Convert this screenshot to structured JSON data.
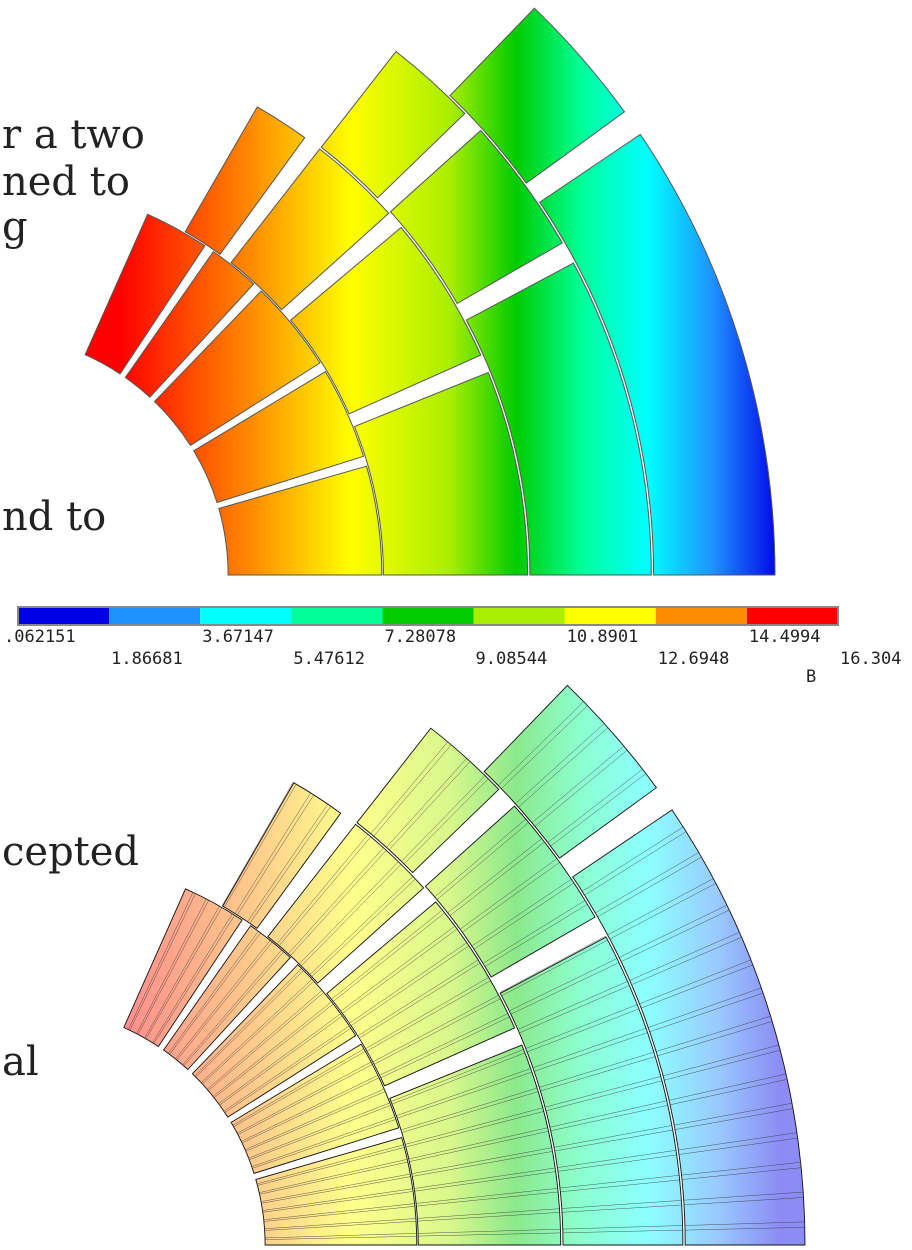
{
  "text_fragments": [
    "r a two",
    "ned to",
    "g",
    "nd to",
    "cepted",
    "al"
  ],
  "legend": {
    "colors": [
      "#0000e6",
      "#1e90ff",
      "#00ffff",
      "#00ff99",
      "#00cc00",
      "#aaee00",
      "#ffff00",
      "#ff8c00",
      "#ff0000"
    ],
    "labels": [
      ".062151",
      "1.86681",
      "3.67147",
      "5.47612",
      "7.28078",
      "9.08544",
      "10.8901",
      "12.6948",
      "14.4994",
      "16.304"
    ],
    "quantity": "B"
  }
}
